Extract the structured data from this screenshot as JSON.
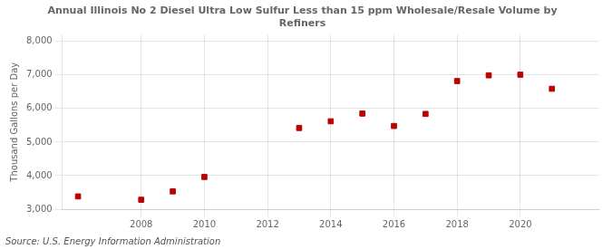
{
  "chart_data": {
    "type": "scatter",
    "title": "Annual Illinois No 2 Diesel Ultra Low Sulfur Less than 15 ppm Wholesale/Resale Volume by\nRefiners",
    "y_label": "Thousand Gallons per Day",
    "source": "Source: U.S. Energy Information Administration",
    "x": [
      2006,
      2008,
      2009,
      2010,
      2013,
      2014,
      2015,
      2016,
      2017,
      2018,
      2019,
      2020,
      2021
    ],
    "values": [
      3380,
      3280,
      3530,
      3960,
      5420,
      5620,
      5850,
      5480,
      5840,
      6820,
      6990,
      7010,
      6590
    ],
    "color": "#bb0000",
    "marker": "square",
    "xlim": [
      2005.5,
      2022.5
    ],
    "ylim": [
      3000,
      8200
    ],
    "xticks": [
      2008,
      2010,
      2012,
      2014,
      2016,
      2018,
      2020
    ],
    "yticks": [
      {
        "value": 3000,
        "label": "3,000"
      },
      {
        "value": 4000,
        "label": "4,000"
      },
      {
        "value": 5000,
        "label": "5,000"
      },
      {
        "value": 6000,
        "label": "6,000"
      },
      {
        "value": 7000,
        "label": "7,000"
      },
      {
        "value": 8000,
        "label": "8,000"
      }
    ],
    "grid": true
  }
}
